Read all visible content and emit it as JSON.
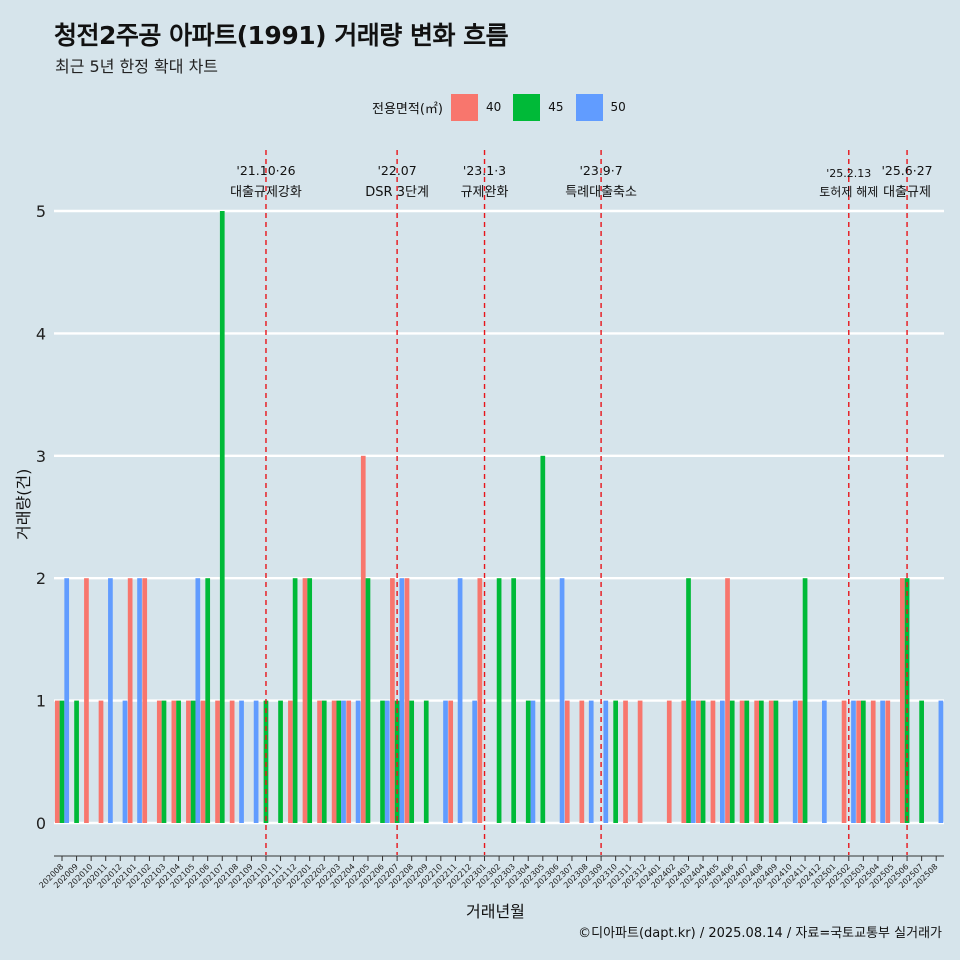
{
  "title": "청전2주공 아파트(1991) 거래량 변화 흐름",
  "subtitle": "최근 5년 한정 확대 차트",
  "caption": "©디아파트(dapt.kr) / 2025.08.14 / 자료=국토교통부 실거래가",
  "legend": {
    "title": "전용면적(㎡)",
    "items": [
      {
        "label": "40",
        "color": "#f8766d"
      },
      {
        "label": "45",
        "color": "#00ba38"
      },
      {
        "label": "50",
        "color": "#619cff"
      }
    ]
  },
  "chart_data": {
    "type": "bar",
    "title": "청전2주공 아파트(1991) 거래량 변화 흐름",
    "subtitle": "최근 5년 한정 확대 차트",
    "xlabel": "거래년월",
    "ylabel": "거래량(건)",
    "ylim": [
      0,
      5
    ],
    "yticks": [
      0,
      1,
      2,
      3,
      4,
      5
    ],
    "grid": "horizontal",
    "legend_position": "top",
    "categories": [
      "202008",
      "202009",
      "202010",
      "202011",
      "202012",
      "202101",
      "202102",
      "202103",
      "202104",
      "202105",
      "202106",
      "202107",
      "202108",
      "202109",
      "202110",
      "202111",
      "202112",
      "202201",
      "202202",
      "202203",
      "202204",
      "202205",
      "202206",
      "202207",
      "202208",
      "202209",
      "202210",
      "202211",
      "202212",
      "202301",
      "202302",
      "202303",
      "202304",
      "202305",
      "202306",
      "202307",
      "202308",
      "202309",
      "202310",
      "202311",
      "202312",
      "202401",
      "202402",
      "202403",
      "202404",
      "202405",
      "202406",
      "202407",
      "202408",
      "202409",
      "202410",
      "202411",
      "202412",
      "202501",
      "202502",
      "202503",
      "202504",
      "202505",
      "202506",
      "202507",
      "202508"
    ],
    "series": [
      {
        "name": "40",
        "color": "#f8766d",
        "values": [
          1,
          0,
          2,
          1,
          0,
          2,
          2,
          1,
          1,
          1,
          1,
          1,
          1,
          0,
          0,
          0,
          1,
          2,
          1,
          1,
          1,
          3,
          0,
          2,
          2,
          0,
          0,
          1,
          0,
          2,
          0,
          0,
          0,
          0,
          0,
          1,
          1,
          0,
          0,
          1,
          1,
          0,
          1,
          1,
          1,
          1,
          2,
          1,
          1,
          1,
          0,
          1,
          0,
          0,
          1,
          1,
          1,
          1,
          2,
          0,
          0
        ]
      },
      {
        "name": "45",
        "color": "#00ba38",
        "values": [
          1,
          1,
          0,
          0,
          0,
          0,
          0,
          1,
          1,
          1,
          2,
          5,
          0,
          0,
          1,
          1,
          2,
          2,
          1,
          1,
          0,
          2,
          1,
          1,
          1,
          1,
          0,
          0,
          0,
          0,
          2,
          2,
          1,
          3,
          0,
          0,
          0,
          0,
          1,
          0,
          0,
          0,
          0,
          2,
          1,
          0,
          1,
          1,
          1,
          1,
          0,
          2,
          0,
          0,
          0,
          1,
          0,
          0,
          2,
          1,
          0
        ]
      },
      {
        "name": "50",
        "color": "#619cff",
        "values": [
          2,
          0,
          0,
          2,
          1,
          2,
          0,
          0,
          0,
          2,
          0,
          0,
          1,
          1,
          0,
          0,
          0,
          0,
          0,
          1,
          1,
          0,
          1,
          2,
          0,
          0,
          1,
          2,
          1,
          0,
          0,
          0,
          1,
          0,
          2,
          0,
          1,
          1,
          0,
          0,
          0,
          0,
          0,
          1,
          0,
          1,
          0,
          0,
          0,
          0,
          1,
          0,
          1,
          0,
          1,
          0,
          1,
          0,
          0,
          0,
          1
        ]
      }
    ],
    "annotations": [
      {
        "category": "202110",
        "date": "'21.10·26",
        "label": "대출규제강화"
      },
      {
        "category": "202207",
        "date": "'22.07",
        "label": "DSR 3단계"
      },
      {
        "category": "202301",
        "date": "'23.1·3",
        "label": "규제완화"
      },
      {
        "category": "202309",
        "date": "'23.9·7",
        "label": "특례대출축소"
      },
      {
        "category": "202502",
        "date": "'25.2.13",
        "label": "토허제 해제"
      },
      {
        "category": "202506",
        "date": "'25.6·27",
        "label": "대출규제"
      }
    ]
  }
}
